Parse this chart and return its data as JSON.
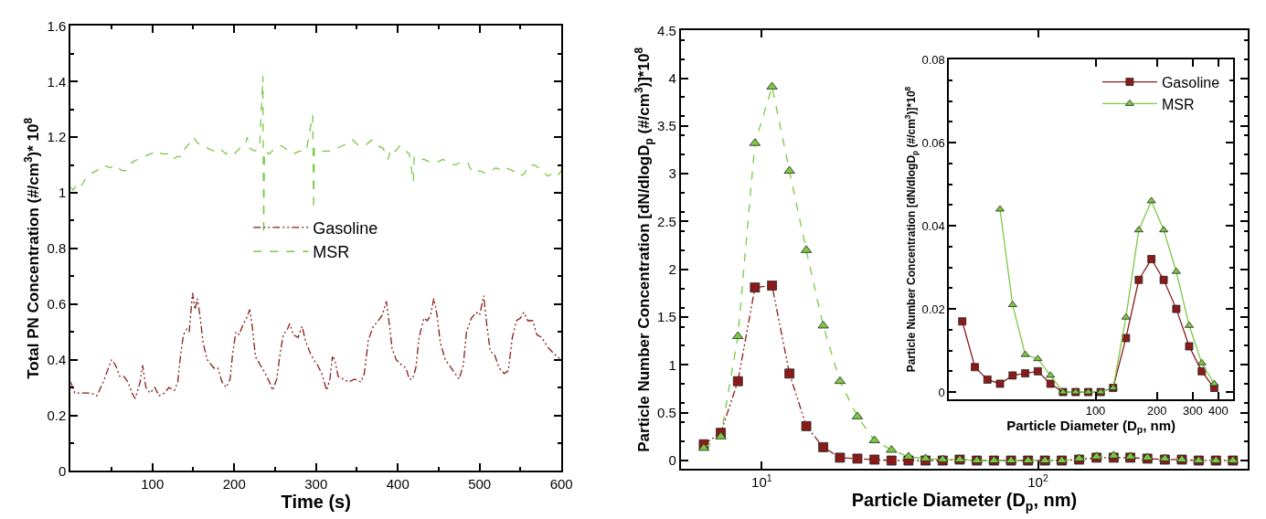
{
  "chart_data": [
    {
      "type": "line",
      "xlabel": "Time (s)",
      "ylabel": "Total PN Concentration (#/cm$^{3}$)* 10$^{8}$",
      "xlim": [
        0,
        600
      ],
      "xticks": [
        100,
        200,
        300,
        400,
        500,
        600
      ],
      "ylim": [
        0,
        1.6
      ],
      "yticks": [
        0,
        0.2,
        0.4,
        0.6,
        0.8,
        1,
        1.2,
        1.4,
        1.6
      ],
      "legend": "center",
      "marker": "none",
      "series": [
        {
          "name": "Gasoline",
          "color": "#8b1a1a",
          "line_style": "dashdot",
          "x": [
            0,
            5,
            15,
            25,
            32,
            40,
            50,
            55,
            60,
            65,
            70,
            75,
            79,
            85,
            88,
            92,
            97,
            103,
            108,
            115,
            120,
            127,
            131,
            135,
            138,
            142,
            145,
            149,
            152,
            155,
            158,
            162,
            167,
            175,
            180,
            185,
            190,
            195,
            198,
            202,
            206,
            210,
            215,
            219,
            222,
            226,
            232,
            238,
            243,
            247,
            252,
            256,
            260,
            265,
            268,
            272,
            278,
            283,
            287,
            292,
            297,
            302,
            307,
            313,
            317,
            320,
            323,
            327,
            333,
            340,
            347,
            355,
            359,
            364,
            370,
            376,
            381,
            386,
            390,
            393,
            398,
            405,
            410,
            414,
            418,
            422,
            426,
            432,
            436,
            440,
            444,
            448,
            452,
            458,
            463,
            470,
            475,
            480,
            484,
            490,
            496,
            500,
            505,
            509,
            513,
            518,
            524,
            530,
            535,
            540,
            545,
            550,
            554,
            559,
            565,
            570,
            576,
            582,
            588,
            595,
            600
          ],
          "values": [
            0.32,
            0.28,
            0.28,
            0.28,
            0.27,
            0.32,
            0.4,
            0.38,
            0.34,
            0.34,
            0.32,
            0.28,
            0.26,
            0.32,
            0.38,
            0.3,
            0.28,
            0.3,
            0.27,
            0.28,
            0.3,
            0.29,
            0.32,
            0.43,
            0.49,
            0.51,
            0.5,
            0.64,
            0.58,
            0.62,
            0.56,
            0.46,
            0.4,
            0.37,
            0.37,
            0.32,
            0.3,
            0.33,
            0.42,
            0.5,
            0.49,
            0.52,
            0.55,
            0.58,
            0.52,
            0.41,
            0.38,
            0.35,
            0.32,
            0.29,
            0.33,
            0.42,
            0.49,
            0.51,
            0.53,
            0.49,
            0.48,
            0.52,
            0.47,
            0.43,
            0.4,
            0.38,
            0.35,
            0.29,
            0.33,
            0.41,
            0.4,
            0.34,
            0.33,
            0.32,
            0.33,
            0.32,
            0.35,
            0.47,
            0.52,
            0.54,
            0.56,
            0.61,
            0.52,
            0.44,
            0.4,
            0.38,
            0.37,
            0.33,
            0.33,
            0.37,
            0.48,
            0.55,
            0.54,
            0.56,
            0.62,
            0.56,
            0.46,
            0.4,
            0.38,
            0.35,
            0.33,
            0.38,
            0.5,
            0.55,
            0.57,
            0.56,
            0.63,
            0.52,
            0.43,
            0.42,
            0.37,
            0.35,
            0.36,
            0.48,
            0.54,
            0.55,
            0.57,
            0.54,
            0.54,
            0.49,
            0.48,
            0.45,
            0.43,
            0.41,
            0.4
          ]
        },
        {
          "name": "MSR",
          "color": "#7ac943",
          "line_style": "dashed",
          "x": [
            0,
            3,
            8,
            12,
            18,
            25,
            32,
            40,
            48,
            55,
            62,
            68,
            75,
            82,
            90,
            98,
            105,
            112,
            120,
            125,
            130,
            136,
            140,
            146,
            150,
            155,
            160,
            168,
            175,
            182,
            190,
            195,
            200,
            207,
            213,
            216,
            219,
            225,
            231,
            235,
            236,
            237,
            243,
            250,
            257,
            262,
            268,
            272,
            280,
            288,
            296,
            297,
            298,
            303,
            310,
            318,
            325,
            333,
            340,
            345,
            352,
            360,
            368,
            375,
            382,
            385,
            388,
            392,
            397,
            403,
            410,
            414,
            419,
            420,
            425,
            432,
            440,
            448,
            455,
            462,
            470,
            477,
            485,
            490,
            495,
            500,
            507,
            514,
            520,
            527,
            532,
            540,
            546,
            550,
            555,
            560,
            567,
            572,
            577,
            583,
            590,
            595,
            600
          ],
          "values": [
            1.02,
            1.01,
            1.03,
            1.02,
            1.05,
            1.07,
            1.08,
            1.1,
            1.09,
            1.1,
            1.08,
            1.08,
            1.11,
            1.12,
            1.13,
            1.14,
            1.15,
            1.14,
            1.14,
            1.12,
            1.13,
            1.13,
            1.16,
            1.18,
            1.2,
            1.18,
            1.17,
            1.16,
            1.15,
            1.16,
            1.14,
            1.15,
            1.14,
            1.16,
            1.17,
            1.2,
            1.16,
            1.15,
            1.16,
            1.42,
            0.85,
            1.15,
            1.14,
            1.16,
            1.17,
            1.16,
            1.15,
            1.14,
            1.15,
            1.15,
            1.28,
            0.94,
            1.16,
            1.15,
            1.15,
            1.15,
            1.16,
            1.17,
            1.18,
            1.19,
            1.17,
            1.17,
            1.19,
            1.17,
            1.16,
            1.14,
            1.12,
            1.16,
            1.15,
            1.17,
            1.15,
            1.14,
            1.04,
            1.13,
            1.12,
            1.12,
            1.11,
            1.11,
            1.12,
            1.11,
            1.1,
            1.11,
            1.11,
            1.08,
            1.07,
            1.08,
            1.07,
            1.08,
            1.09,
            1.08,
            1.09,
            1.08,
            1.07,
            1.06,
            1.07,
            1.1,
            1.1,
            1.09,
            1.08,
            1.06,
            1.07,
            1.06,
            1.08
          ]
        }
      ]
    },
    {
      "type": "line",
      "xlabel": "Particle Diameter (D$_{p}$, nm)",
      "ylabel": "Particle Number Concentration [dN/dlogD$_{p}$ (#/cm$^{3}$)]*10$^{8}$",
      "log": "x",
      "xlim": [
        5.1,
        575
      ],
      "xticks": [
        {
          "value": 10,
          "label": "10$^{1}$"
        },
        {
          "value": 100,
          "label": "10$^{2}$"
        }
      ],
      "ylim": [
        -0.09,
        4.5
      ],
      "yticks": [
        0,
        0.5,
        1,
        1.5,
        2,
        2.5,
        3,
        3.5,
        4,
        4.5
      ],
      "x": [
        6.17,
        7.11,
        8.2,
        9.45,
        10.9,
        12.6,
        14.5,
        16.7,
        19.2,
        22.2,
        25.6,
        29.5,
        34,
        39.2,
        45.2,
        52.1,
        60.1,
        69.3,
        79.9,
        92.1,
        106,
        122,
        141,
        163,
        188,
        216,
        249,
        288,
        332,
        382,
        441,
        508
      ],
      "series": [
        {
          "color": "#8b1a1a",
          "line_style": "dashdot",
          "marker": "square",
          "values": [
            0.17,
            0.29,
            0.83,
            1.81,
            1.83,
            0.91,
            0.36,
            0.14,
            0.03,
            0.02,
            0.01,
            0,
            0,
            0,
            0,
            0.01,
            0,
            0,
            0,
            0,
            0,
            0,
            0.01,
            0.03,
            0.03,
            0.03,
            0.02,
            0.01,
            0.01,
            0,
            0,
            0
          ]
        },
        {
          "color": "#7ac943",
          "line_style": "dashed",
          "marker": "triangle",
          "values": [
            0.13,
            0.25,
            1.3,
            3.32,
            3.91,
            3.03,
            2.2,
            1.41,
            0.83,
            0.46,
            0.21,
            0.11,
            0.04,
            0.02,
            0.01,
            0.01,
            0,
            0,
            0,
            0,
            0,
            0,
            0.02,
            0.04,
            0.05,
            0.04,
            0.03,
            0.02,
            0.01,
            0,
            0,
            0
          ]
        }
      ]
    },
    {
      "type": "line",
      "xlabel": "Particle Diameter (D$_{p}$, nm)",
      "ylabel": "Particle Number Concentration [dN/dlogD$_{p}$ (#/cm$^{3}$)]*10$^{8}$",
      "log": "x",
      "xlim": [
        19.1,
        474
      ],
      "xticks": [
        100,
        200,
        300,
        400
      ],
      "ylim": [
        -0.0017,
        0.08
      ],
      "yticks": [
        0,
        0.02,
        0.04,
        0.06,
        0.08
      ],
      "legend": "top right",
      "series": [
        {
          "name": "Gasoline",
          "color": "#8b1a1a",
          "line_style": "solid",
          "marker": "square",
          "x": [
            22.2,
            25.6,
            29.5,
            34,
            39.2,
            45.2,
            52.1,
            60.1,
            69.3,
            79.9,
            92.1,
            106,
            122,
            141,
            163,
            188,
            216,
            249,
            288,
            332,
            382
          ],
          "values": [
            0.017,
            0.006,
            0.003,
            0.002,
            0.004,
            0.0045,
            0.005,
            0.002,
            0,
            0,
            0,
            0,
            0.001,
            0.013,
            0.027,
            0.032,
            0.027,
            0.02,
            0.011,
            0.005,
            0.001
          ]
        },
        {
          "name": "MSR",
          "color": "#7ac943",
          "line_style": "solid",
          "marker": "triangle",
          "x": [
            34,
            39.2,
            45.2,
            52.1,
            60.1,
            69.3,
            79.9,
            92.1,
            106,
            122,
            141,
            163,
            188,
            216,
            249,
            288,
            332,
            382
          ],
          "values": [
            0.044,
            0.021,
            0.009,
            0.008,
            0.004,
            0,
            0,
            0,
            0,
            0.001,
            0.018,
            0.039,
            0.046,
            0.039,
            0.029,
            0.016,
            0.007,
            0.002
          ]
        }
      ]
    }
  ]
}
